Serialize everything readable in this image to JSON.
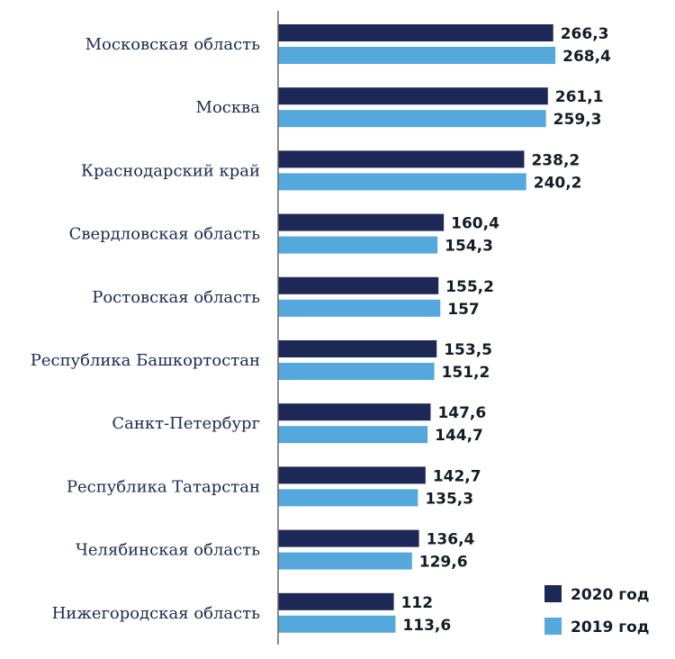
{
  "chart_data": {
    "type": "bar",
    "orientation": "horizontal",
    "categories": [
      "Московская область",
      "Москва",
      "Краснодарский край",
      "Свердловская область",
      "Ростовская область",
      "Республика Башкортостан",
      "Санкт-Петербург",
      "Республика Татарстан",
      "Челябинская область",
      "Нижегородская область"
    ],
    "series": [
      {
        "name": "2020 год",
        "color": "#1d2856",
        "values": [
          266.3,
          261.1,
          238.2,
          160.4,
          155.2,
          153.5,
          147.6,
          142.7,
          136.4,
          112
        ],
        "labels": [
          "266,3",
          "261,1",
          "238,2",
          "160,4",
          "155,2",
          "153,5",
          "147,6",
          "142,7",
          "136,4",
          "112"
        ]
      },
      {
        "name": "2019 год",
        "color": "#55a8dc",
        "values": [
          268.4,
          259.3,
          240.2,
          154.3,
          157,
          151.2,
          144.7,
          135.3,
          129.6,
          113.6
        ],
        "labels": [
          "268,4",
          "259,3",
          "240,2",
          "154,3",
          "157",
          "151,2",
          "144,7",
          "135,3",
          "129,6",
          "113,6"
        ]
      }
    ],
    "grid": false,
    "legend_position": "bottom-right",
    "title": "",
    "xlabel": "",
    "ylabel": ""
  }
}
